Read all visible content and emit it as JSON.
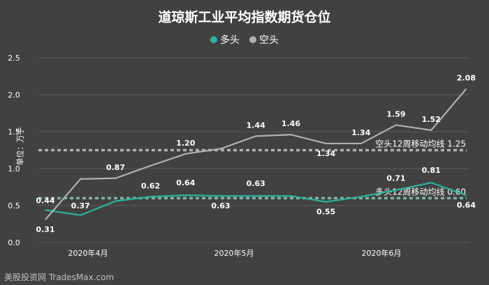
{
  "chart_data": {
    "type": "line",
    "title": "道琼斯工业平均指数期货仓位",
    "ylabel": "单位：万手",
    "xlabel": "",
    "ylim": [
      0,
      2.5
    ],
    "yticks": [
      "0.0",
      "0.5",
      "1.0",
      "1.5",
      "2.0",
      "2.5"
    ],
    "xtick_labels": [
      "2020年4月",
      "2020年5月",
      "2020年6月"
    ],
    "legend_position": "top-center",
    "grid": "horizontal",
    "series": [
      {
        "name": "多头",
        "color": "#2ab3a0",
        "values": [
          0.44,
          0.37,
          0.56,
          0.62,
          0.64,
          0.63,
          0.63,
          0.63,
          0.55,
          0.62,
          0.71,
          0.81,
          0.64
        ],
        "labels": [
          "0.44",
          "0.37",
          "",
          "0.62",
          "0.64",
          "0.63",
          "0.63",
          "",
          "0.55",
          "",
          "0.71",
          "0.81",
          "0.64"
        ]
      },
      {
        "name": "空头",
        "color": "#b0b0b0",
        "values": [
          0.31,
          0.86,
          0.87,
          1.04,
          1.2,
          1.27,
          1.44,
          1.46,
          1.34,
          1.34,
          1.59,
          1.52,
          2.08
        ],
        "labels": [
          "0.31",
          "",
          "0.87",
          "",
          "1.20",
          "",
          "1.44",
          "1.46",
          "1.34",
          "1.34",
          "1.59",
          "1.52",
          "2.08"
        ]
      }
    ],
    "reference_lines": [
      {
        "label": "空头12周移动均线",
        "value": 1.25,
        "value_label": "1.25",
        "color": "#b0b0b0"
      },
      {
        "label": "多头12周移动均线",
        "value": 0.6,
        "value_label": "0.60",
        "color": "#7fb2a6"
      }
    ]
  },
  "watermark": "美股投资网 TradesMax.com"
}
